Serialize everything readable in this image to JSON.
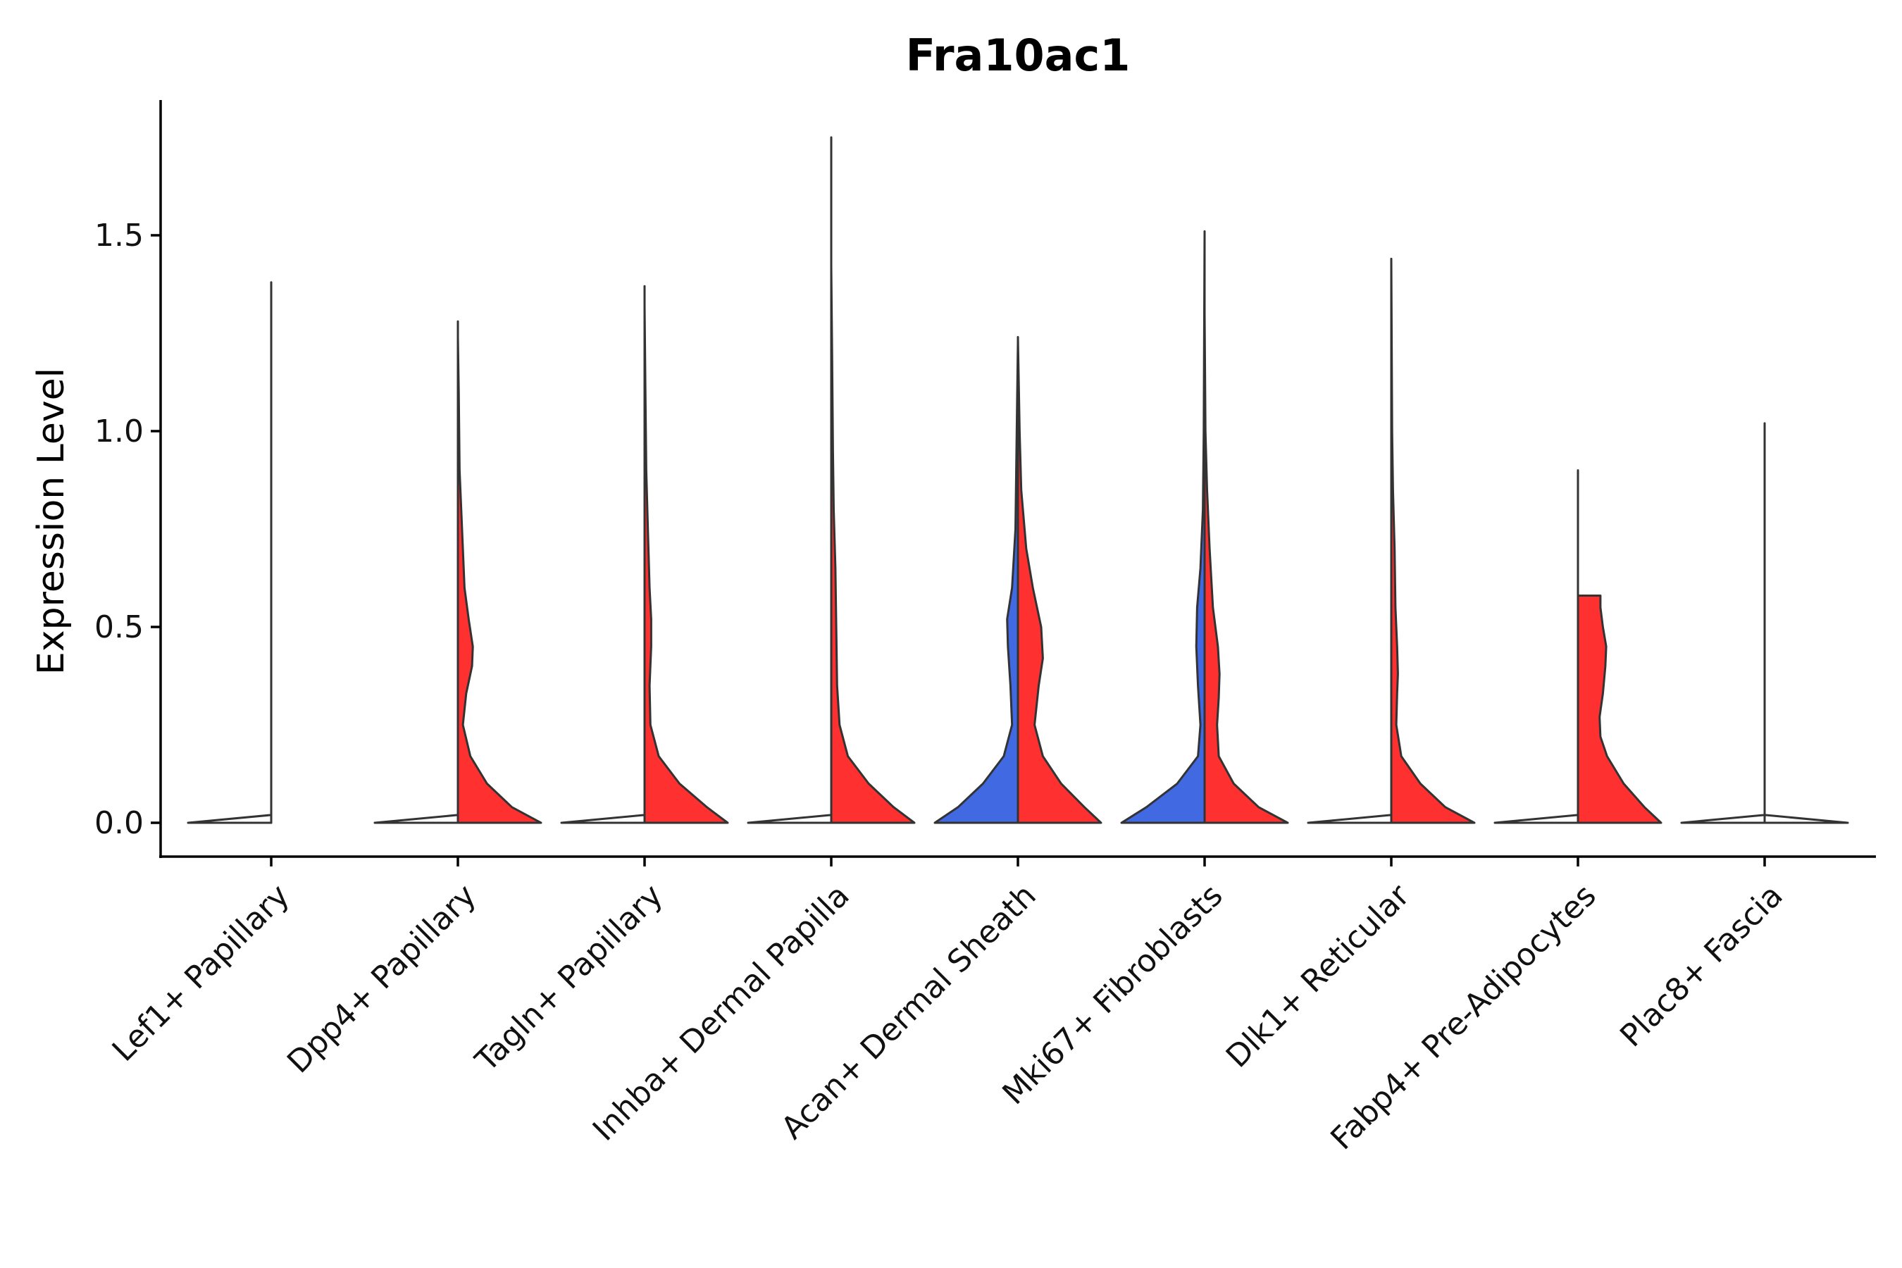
{
  "chart_data": {
    "type": "violin",
    "title": "Fra10ac1",
    "xlabel": "",
    "ylabel": "Expression Level",
    "ylim": [
      -0.09,
      1.85
    ],
    "yticks": [
      0.0,
      0.5,
      1.0,
      1.5
    ],
    "ytick_labels": [
      "0.0",
      "0.5",
      "1.0",
      "1.5"
    ],
    "grid": false,
    "legend": "none",
    "group_colors": {
      "blue": "#4169E1",
      "red": "#FF3030",
      "none": "#FFFFFF"
    },
    "categories": [
      "Lef1+ Papillary",
      "Dpp4+ Papillary",
      "Tagln+ Papillary",
      "Inhba+ Dermal Papilla",
      "Acan+ Dermal Sheath",
      "Mki67+ Fibroblasts",
      "Dlk1+ Reticular",
      "Fabp4+ Pre-Adipocytes",
      "Plac8+ Fascia"
    ],
    "series": [
      {
        "category": "Lef1+ Papillary",
        "side": "left",
        "color": "none",
        "max": 1.38,
        "density": [
          [
            0,
            1
          ],
          [
            0.02,
            0
          ],
          [
            1.38,
            0
          ]
        ]
      },
      {
        "category": "Lef1+ Papillary",
        "side": "right",
        "color": "none",
        "max": 0.0,
        "density": [
          [
            0,
            0
          ],
          [
            0.01,
            0
          ]
        ]
      },
      {
        "category": "Dpp4+ Papillary",
        "side": "left",
        "color": "none",
        "max": 1.28,
        "density": [
          [
            0,
            1
          ],
          [
            0.02,
            0
          ],
          [
            1.28,
            0
          ]
        ]
      },
      {
        "category": "Dpp4+ Papillary",
        "side": "right",
        "color": "red",
        "max": 1.24,
        "density": [
          [
            0,
            1
          ],
          [
            0.04,
            0.65
          ],
          [
            0.1,
            0.35
          ],
          [
            0.17,
            0.15
          ],
          [
            0.25,
            0.06
          ],
          [
            0.33,
            0.1
          ],
          [
            0.4,
            0.17
          ],
          [
            0.45,
            0.18
          ],
          [
            0.52,
            0.13
          ],
          [
            0.6,
            0.08
          ],
          [
            0.75,
            0.05
          ],
          [
            0.9,
            0.02
          ],
          [
            1.1,
            0.01
          ],
          [
            1.24,
            0
          ]
        ]
      },
      {
        "category": "Tagln+ Papillary",
        "side": "left",
        "color": "none",
        "max": 1.37,
        "density": [
          [
            0,
            1
          ],
          [
            0.02,
            0
          ],
          [
            1.37,
            0
          ]
        ]
      },
      {
        "category": "Tagln+ Papillary",
        "side": "right",
        "color": "red",
        "max": 1.32,
        "density": [
          [
            0,
            1
          ],
          [
            0.04,
            0.75
          ],
          [
            0.1,
            0.42
          ],
          [
            0.17,
            0.17
          ],
          [
            0.25,
            0.07
          ],
          [
            0.35,
            0.06
          ],
          [
            0.45,
            0.08
          ],
          [
            0.52,
            0.08
          ],
          [
            0.6,
            0.06
          ],
          [
            0.75,
            0.04
          ],
          [
            0.9,
            0.02
          ],
          [
            1.1,
            0.01
          ],
          [
            1.32,
            0
          ]
        ]
      },
      {
        "category": "Inhba+ Dermal Papilla",
        "side": "left",
        "color": "none",
        "max": 1.75,
        "density": [
          [
            0,
            1
          ],
          [
            0.02,
            0
          ],
          [
            1.75,
            0
          ]
        ]
      },
      {
        "category": "Inhba+ Dermal Papilla",
        "side": "right",
        "color": "red",
        "max": 1.42,
        "density": [
          [
            0,
            1
          ],
          [
            0.04,
            0.75
          ],
          [
            0.1,
            0.45
          ],
          [
            0.17,
            0.2
          ],
          [
            0.25,
            0.1
          ],
          [
            0.35,
            0.07
          ],
          [
            0.5,
            0.06
          ],
          [
            0.65,
            0.05
          ],
          [
            0.8,
            0.03
          ],
          [
            0.95,
            0.02
          ],
          [
            1.2,
            0.01
          ],
          [
            1.42,
            0
          ]
        ]
      },
      {
        "category": "Acan+ Dermal Sheath",
        "side": "left",
        "color": "blue",
        "max": 1.23,
        "density": [
          [
            0,
            1
          ],
          [
            0.04,
            0.72
          ],
          [
            0.1,
            0.42
          ],
          [
            0.17,
            0.17
          ],
          [
            0.25,
            0.07
          ],
          [
            0.35,
            0.09
          ],
          [
            0.45,
            0.12
          ],
          [
            0.52,
            0.13
          ],
          [
            0.6,
            0.07
          ],
          [
            0.75,
            0.03
          ],
          [
            0.9,
            0.02
          ],
          [
            1.23,
            0
          ]
        ]
      },
      {
        "category": "Acan+ Dermal Sheath",
        "side": "right",
        "color": "red",
        "max": 1.24,
        "density": [
          [
            0,
            1
          ],
          [
            0.04,
            0.8
          ],
          [
            0.1,
            0.52
          ],
          [
            0.17,
            0.3
          ],
          [
            0.25,
            0.2
          ],
          [
            0.35,
            0.25
          ],
          [
            0.42,
            0.3
          ],
          [
            0.5,
            0.28
          ],
          [
            0.6,
            0.18
          ],
          [
            0.7,
            0.1
          ],
          [
            0.85,
            0.04
          ],
          [
            1.0,
            0.02
          ],
          [
            1.24,
            0
          ]
        ]
      },
      {
        "category": "Mki67+ Fibroblasts",
        "side": "left",
        "color": "blue",
        "max": 1.51,
        "density": [
          [
            0,
            1
          ],
          [
            0.04,
            0.7
          ],
          [
            0.1,
            0.33
          ],
          [
            0.17,
            0.08
          ],
          [
            0.25,
            0.05
          ],
          [
            0.35,
            0.08
          ],
          [
            0.45,
            0.1
          ],
          [
            0.55,
            0.09
          ],
          [
            0.65,
            0.05
          ],
          [
            0.8,
            0.02
          ],
          [
            1.0,
            0.01
          ],
          [
            1.51,
            0
          ]
        ]
      },
      {
        "category": "Mki67+ Fibroblasts",
        "side": "right",
        "color": "red",
        "max": 1.3,
        "density": [
          [
            0,
            1
          ],
          [
            0.04,
            0.65
          ],
          [
            0.1,
            0.35
          ],
          [
            0.17,
            0.17
          ],
          [
            0.25,
            0.15
          ],
          [
            0.32,
            0.17
          ],
          [
            0.38,
            0.18
          ],
          [
            0.45,
            0.16
          ],
          [
            0.55,
            0.1
          ],
          [
            0.7,
            0.06
          ],
          [
            0.85,
            0.03
          ],
          [
            1.0,
            0.01
          ],
          [
            1.3,
            0
          ]
        ]
      },
      {
        "category": "Dlk1+ Reticular",
        "side": "left",
        "color": "none",
        "max": 1.33,
        "density": [
          [
            0,
            1
          ],
          [
            0.02,
            0
          ],
          [
            1.33,
            0
          ]
        ]
      },
      {
        "category": "Dlk1+ Reticular",
        "side": "right",
        "color": "red",
        "max": 1.44,
        "density": [
          [
            0,
            1
          ],
          [
            0.04,
            0.65
          ],
          [
            0.1,
            0.35
          ],
          [
            0.17,
            0.12
          ],
          [
            0.25,
            0.06
          ],
          [
            0.33,
            0.07
          ],
          [
            0.38,
            0.08
          ],
          [
            0.45,
            0.07
          ],
          [
            0.55,
            0.05
          ],
          [
            0.7,
            0.04
          ],
          [
            0.85,
            0.02
          ],
          [
            1.0,
            0.01
          ],
          [
            1.44,
            0
          ]
        ]
      },
      {
        "category": "Fabp4+ Pre-Adipocytes",
        "side": "left",
        "color": "none",
        "max": 0.9,
        "density": [
          [
            0,
            1
          ],
          [
            0.02,
            0
          ],
          [
            0.9,
            0
          ]
        ]
      },
      {
        "category": "Fabp4+ Pre-Adipocytes",
        "side": "right",
        "color": "red",
        "max": 0.58,
        "density": [
          [
            0,
            1
          ],
          [
            0.04,
            0.8
          ],
          [
            0.1,
            0.55
          ],
          [
            0.17,
            0.35
          ],
          [
            0.22,
            0.27
          ],
          [
            0.27,
            0.26
          ],
          [
            0.33,
            0.3
          ],
          [
            0.4,
            0.33
          ],
          [
            0.45,
            0.34
          ],
          [
            0.5,
            0.3
          ],
          [
            0.55,
            0.27
          ],
          [
            0.58,
            0.27
          ]
        ]
      },
      {
        "category": "Plac8+ Fascia",
        "side": "left",
        "color": "none",
        "max": 1.02,
        "density": [
          [
            0,
            1
          ],
          [
            0.02,
            0
          ],
          [
            1.02,
            0
          ]
        ]
      },
      {
        "category": "Plac8+ Fascia",
        "side": "right",
        "color": "none",
        "max": 0.93,
        "density": [
          [
            0,
            1
          ],
          [
            0.02,
            0
          ],
          [
            0.93,
            0
          ]
        ]
      }
    ]
  }
}
